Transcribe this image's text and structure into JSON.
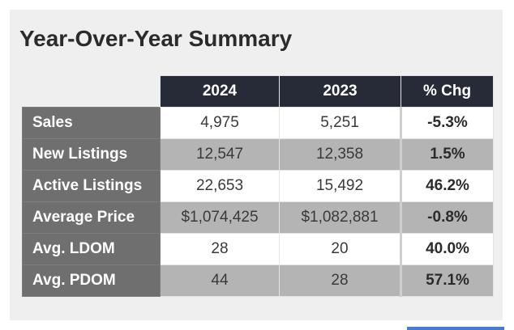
{
  "title": "Year-Over-Year Summary",
  "table": {
    "headers": [
      "",
      "2024",
      "2023",
      "% Chg"
    ],
    "rows": [
      {
        "label": "Sales",
        "y2024": "4,975",
        "y2023": "5,251",
        "chg": "-5.3%"
      },
      {
        "label": "New Listings",
        "y2024": "12,547",
        "y2023": "12,358",
        "chg": "1.5%"
      },
      {
        "label": "Active Listings",
        "y2024": "22,653",
        "y2023": "15,492",
        "chg": "46.2%"
      },
      {
        "label": "Average Price",
        "y2024": "$1,074,425",
        "y2023": "$1,082,881",
        "chg": "-0.8%"
      },
      {
        "label": "Avg. LDOM",
        "y2024": "28",
        "y2023": "20",
        "chg": "40.0%"
      },
      {
        "label": "Avg. PDOM",
        "y2024": "44",
        "y2023": "28",
        "chg": "57.1%"
      }
    ]
  },
  "colors": {
    "header_bg": "#262b37",
    "label_bg": "#6f6f6f",
    "row_alt_bg": "#b4b4b4",
    "card_bg": "#efefef",
    "accent_bar": "#4b7bc6"
  }
}
